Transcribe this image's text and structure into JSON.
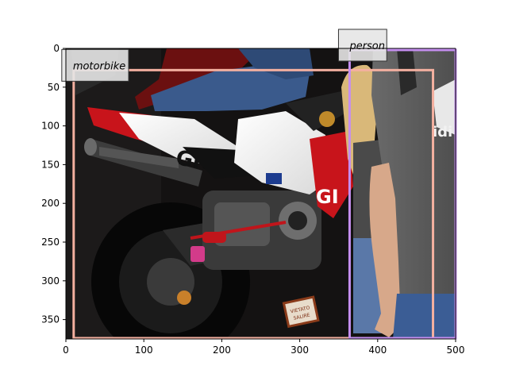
{
  "image": {
    "x_ticks": [
      "0",
      "100",
      "200",
      "300",
      "400",
      "500"
    ],
    "y_ticks": [
      "0",
      "50",
      "100",
      "150",
      "200",
      "250",
      "300",
      "350"
    ],
    "x_range": [
      0,
      500
    ],
    "y_range": [
      375,
      0
    ]
  },
  "detections": [
    {
      "label": "motorbike",
      "color": "#f4b0a0",
      "bbox_data": [
        10,
        28,
        471,
        375
      ]
    },
    {
      "label": "person",
      "color": "#c58ef0",
      "bbox_data": [
        364,
        2,
        500,
        375
      ]
    }
  ],
  "colors": {
    "motorbike_box": "#f4b0a0",
    "person_box": "#c58ef0",
    "axis": "#000000"
  }
}
